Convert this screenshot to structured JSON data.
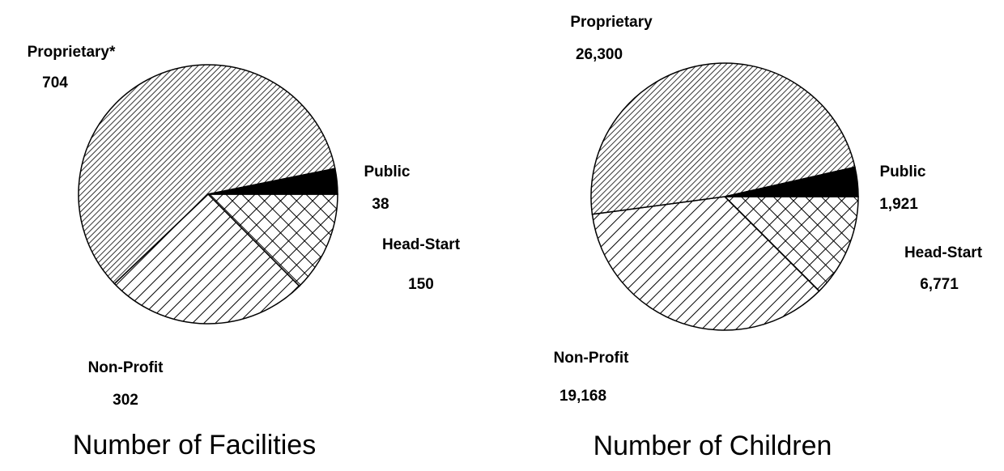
{
  "chart_data": [
    {
      "type": "pie",
      "title": "Number of Facilities",
      "categories": [
        "Head-Start",
        "Non-Profit",
        "Proprietary*",
        "Public"
      ],
      "values": [
        150,
        302,
        704,
        38
      ],
      "patterns": [
        "crosshatch",
        "hatch-wide",
        "hatch-fine",
        "solid"
      ]
    },
    {
      "type": "pie",
      "title": "Number of Children",
      "categories": [
        "Head-Start",
        "Non-Profit",
        "Proprietary",
        "Public"
      ],
      "values": [
        6771,
        19168,
        26300,
        1921
      ],
      "value_labels": [
        "6,771",
        "19,168",
        "26,300",
        "1,921"
      ],
      "patterns": [
        "crosshatch",
        "hatch-wide",
        "hatch-fine",
        "solid"
      ]
    }
  ]
}
